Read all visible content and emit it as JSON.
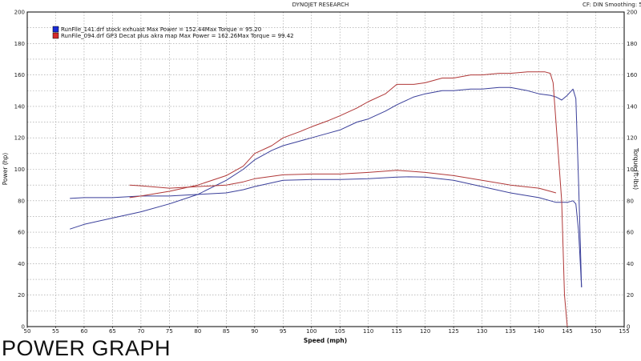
{
  "header": {
    "title": "DYNOJET RESEARCH",
    "settings": "CF: DIN  Smoothing: 5"
  },
  "caption": "POWER GRAPH",
  "chart_data": {
    "type": "line",
    "xlabel": "Speed (mph)",
    "ylabel": "Power (hp)",
    "y2label": "Torque (ft-lbs)",
    "xlim": [
      50,
      155
    ],
    "ylim": [
      0,
      200
    ],
    "y2lim": [
      0,
      200
    ],
    "xticks": [
      50,
      55,
      60,
      65,
      70,
      75,
      80,
      85,
      90,
      95,
      100,
      105,
      110,
      115,
      120,
      125,
      130,
      135,
      140,
      145,
      150,
      155
    ],
    "yticks": [
      0,
      20,
      40,
      60,
      80,
      100,
      120,
      140,
      160,
      180,
      200
    ],
    "grid": true,
    "legend": [
      {
        "name": "RunFile_141.drf stock exhuast Max Power = 152.44Max Torque = 95.20",
        "color": "#1a2bd6"
      },
      {
        "name": "RunFile_094.drf  GP3 Decat plus akra map Max Power = 162.26Max Torque = 99.42",
        "color": "#d42a2a"
      }
    ],
    "legend_position": "top-left",
    "series": [
      {
        "run": "RunFile_141",
        "measure": "power",
        "color": "#3a3f9a",
        "x": [
          57.5,
          60,
          65,
          70,
          75,
          80,
          85,
          88,
          90,
          93,
          95,
          98,
          100,
          103,
          105,
          108,
          110,
          113,
          115,
          118,
          120,
          123,
          125,
          128,
          130,
          133,
          135,
          138,
          140,
          142,
          143,
          144,
          145,
          146,
          146.5,
          147,
          147.5
        ],
        "y": [
          62,
          65,
          69,
          73,
          78,
          84,
          93,
          100,
          106,
          112,
          115,
          118,
          120,
          123,
          125,
          130,
          132,
          137,
          141,
          146,
          148,
          150,
          150,
          151,
          151,
          152,
          152,
          150,
          148,
          147,
          146,
          144,
          147,
          151,
          145,
          90,
          25
        ]
      },
      {
        "run": "RunFile_141",
        "measure": "torque",
        "color": "#3a3f9a",
        "x": [
          57.5,
          60,
          65,
          70,
          75,
          80,
          85,
          88,
          90,
          95,
          100,
          105,
          110,
          115,
          117,
          120,
          125,
          130,
          135,
          140,
          142,
          143,
          144,
          145,
          146,
          146.5,
          147,
          147.5
        ],
        "y": [
          81.5,
          82,
          82,
          83,
          83,
          84,
          85,
          87,
          89,
          93,
          93.5,
          93.5,
          94,
          95,
          95.2,
          95,
          93,
          89,
          85,
          82,
          80,
          79,
          79,
          79,
          80,
          78,
          60,
          25
        ]
      },
      {
        "run": "RunFile_094",
        "measure": "power",
        "color": "#b03838",
        "x": [
          68,
          70,
          75,
          80,
          85,
          88,
          90,
          93,
          95,
          98,
          100,
          103,
          105,
          108,
          110,
          113,
          115,
          118,
          120,
          123,
          125,
          128,
          130,
          133,
          135,
          138,
          140,
          141,
          142,
          142.5,
          143,
          144,
          144.5,
          145
        ],
        "y": [
          82,
          83,
          86,
          90,
          96,
          102,
          110,
          115,
          120,
          124,
          127,
          131,
          134,
          139,
          143,
          148,
          154,
          154,
          155,
          158,
          158,
          160,
          160,
          161,
          161,
          162,
          162,
          162,
          161,
          155,
          130,
          80,
          20,
          0
        ]
      },
      {
        "run": "RunFile_094",
        "measure": "torque",
        "color": "#b03838",
        "x": [
          68,
          70,
          75,
          80,
          85,
          88,
          90,
          95,
          100,
          105,
          110,
          115,
          120,
          125,
          130,
          135,
          140,
          142,
          143
        ],
        "y": [
          90,
          89.5,
          88,
          89,
          90,
          92,
          94,
          96.5,
          97,
          97,
          98,
          99.4,
          98,
          96,
          93,
          90,
          88,
          86,
          85
        ]
      }
    ]
  }
}
